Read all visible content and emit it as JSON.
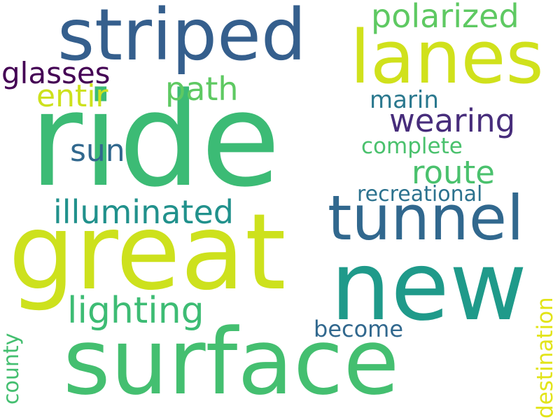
{
  "words": [
    {
      "id": "ride",
      "text": "ride",
      "color": "#3cbb75"
    },
    {
      "id": "great",
      "text": "great",
      "color": "#cde11d"
    },
    {
      "id": "surface",
      "text": "surface",
      "color": "#44bf70"
    },
    {
      "id": "striped",
      "text": "striped",
      "color": "#355f8d"
    },
    {
      "id": "new",
      "text": "new",
      "color": "#1f9a8a"
    },
    {
      "id": "lanes",
      "text": "lanes",
      "color": "#d0e11c"
    },
    {
      "id": "tunnel",
      "text": "tunnel",
      "color": "#31688e"
    },
    {
      "id": "lighting",
      "text": "lighting",
      "color": "#3dbc74"
    },
    {
      "id": "illuminated",
      "text": "illuminated",
      "color": "#21918c"
    },
    {
      "id": "wearing",
      "text": "wearing",
      "color": "#472d7b"
    },
    {
      "id": "polarized",
      "text": "polarized",
      "color": "#5ec962"
    },
    {
      "id": "glasses",
      "text": "glasses",
      "color": "#440154"
    },
    {
      "id": "route",
      "text": "route",
      "color": "#4ac16d"
    },
    {
      "id": "path",
      "text": "path",
      "color": "#5ec962"
    },
    {
      "id": "entir",
      "text": "entir",
      "color": "#cde11d"
    },
    {
      "id": "sun",
      "text": "sun",
      "color": "#31688e"
    },
    {
      "id": "complete",
      "text": "complete",
      "color": "#4ac16d"
    },
    {
      "id": "marin",
      "text": "marin",
      "color": "#2a788e"
    },
    {
      "id": "recreational",
      "text": "recreational",
      "color": "#2c728e"
    },
    {
      "id": "become",
      "text": "become",
      "color": "#31688e"
    },
    {
      "id": "county",
      "text": "county",
      "color": "#44bf70"
    },
    {
      "id": "destination",
      "text": "destination",
      "color": "#e2e418"
    }
  ]
}
